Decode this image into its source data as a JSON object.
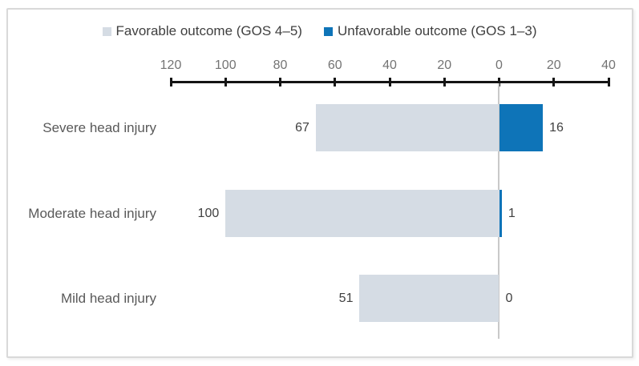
{
  "chart_data": {
    "type": "bar",
    "subtype": "horizontal-diverging",
    "title": "",
    "categories": [
      "Severe head injury",
      "Moderate head injury",
      "Mild head injury"
    ],
    "series": [
      {
        "name": "Favorable outcome (GOS 4–5)",
        "side": "left",
        "color": "#d5dce4",
        "values": [
          67,
          100,
          51
        ]
      },
      {
        "name": "Unfavorable outcome (GOS 1–3)",
        "side": "right",
        "color": "#0e74b8",
        "values": [
          16,
          1,
          0
        ]
      }
    ],
    "value_labels_shown": true,
    "axis": {
      "position": "top",
      "tick_labels": [
        "120",
        "100",
        "80",
        "60",
        "40",
        "20",
        "0",
        "20",
        "40"
      ],
      "tick_interval": 20,
      "left_range_max": 120,
      "right_range_max": 40,
      "line_color": "#141414"
    },
    "legend_position": "top",
    "grid": false,
    "zero_line_color": "#c9c9c9",
    "frame_border_color": "#d9d9d9"
  },
  "legend": {
    "items": [
      {
        "label": "Favorable outcome (GOS 4–5)",
        "color": "#d5dce4"
      },
      {
        "label": "Unfavorable outcome (GOS 1–3)",
        "color": "#0e74b8"
      }
    ]
  }
}
